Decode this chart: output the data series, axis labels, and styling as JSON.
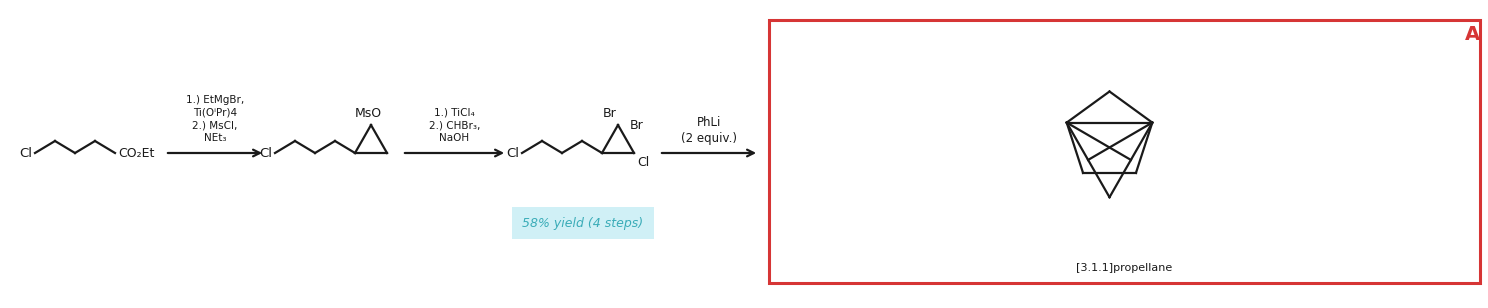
{
  "bg_color": "#ffffff",
  "figsize": [
    14.88,
    3.08
  ],
  "dpi": 100,
  "text_color": "#1a1a1a",
  "highlight_color": "#c8eef5",
  "red_color": "#d63535",
  "cyan_text_color": "#3aacb8",
  "reagent1_lines": [
    "1.) EtMgBr,",
    "Ti(OⁱPr)4",
    "2.) MsCl,",
    "NEt₃"
  ],
  "reagent2_lines": [
    "1.) TiCl₄",
    "2.) CHBr₃,",
    "NaOH"
  ],
  "reagent3_line": "PhLi\n(2 equiv.)",
  "yield_text": "58% yield (4 steps)",
  "label_A": "A",
  "product_label": "[3.1.1]propellane",
  "superscript_i": "i"
}
